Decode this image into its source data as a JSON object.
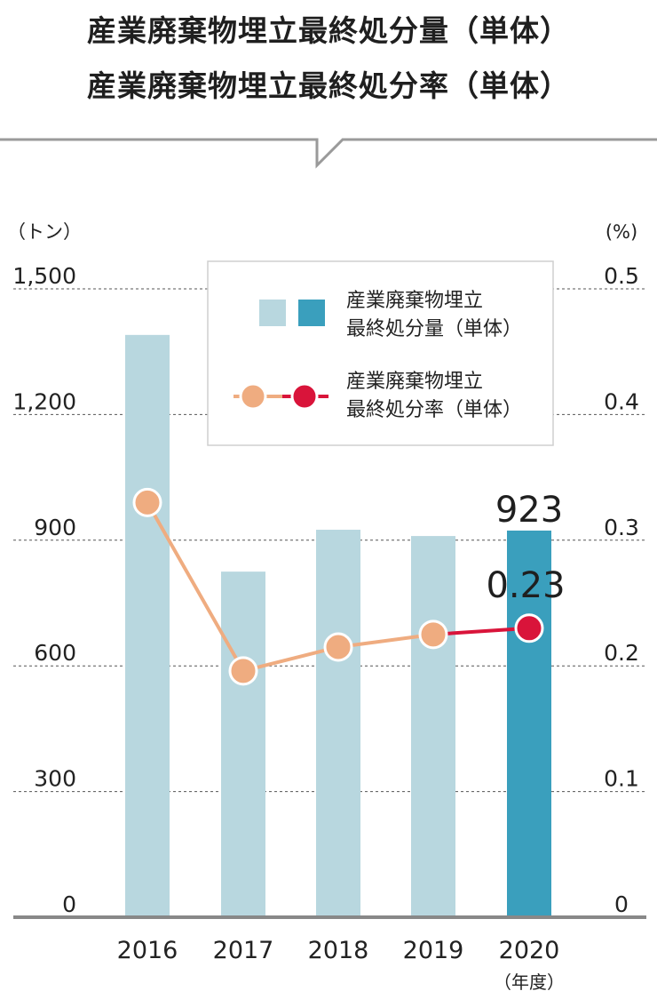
{
  "titles": [
    "産業廃棄物埋立最終処分量（単体）",
    "産業廃棄物埋立最終処分率（単体）"
  ],
  "chart_data": {
    "type": "bar+line",
    "categories": [
      "2016",
      "2017",
      "2018",
      "2019",
      "2020"
    ],
    "x_unit_label": "（年度）",
    "left_axis": {
      "unit_label": "（トン）",
      "min": 0,
      "max": 1500,
      "ticks": [
        0,
        300,
        600,
        900,
        1200,
        1500
      ],
      "tick_labels": [
        "0",
        "300",
        "600",
        "900",
        "1,200",
        "1,500"
      ]
    },
    "right_axis": {
      "unit_label": "(%)",
      "min": 0,
      "max": 0.5,
      "ticks": [
        0,
        0.1,
        0.2,
        0.3,
        0.4,
        0.5
      ],
      "tick_labels": [
        "0",
        "0.1",
        "0.2",
        "0.3",
        "0.4",
        "0.5"
      ]
    },
    "grid": true,
    "series": [
      {
        "name": "産業廃棄物埋立最終処分量（単体）",
        "legend_lines": [
          "産業廃棄物埋立",
          "最終処分量（単体）"
        ],
        "type": "bar",
        "axis": "left",
        "values": [
          1390,
          825,
          925,
          910,
          923
        ],
        "highlight_index": 4,
        "highlight_label": "923"
      },
      {
        "name": "産業廃棄物埋立最終処分率（単体）",
        "legend_lines": [
          "産業廃棄物埋立",
          "最終処分率（単体）"
        ],
        "type": "line",
        "axis": "right",
        "values": [
          0.33,
          0.196,
          0.215,
          0.225,
          0.23
        ],
        "highlight_index": 4,
        "highlight_label": "0.23"
      }
    ],
    "legend_position": "top-right",
    "colors": {
      "bar": "#b8d7df",
      "bar_highlight": "#3a9fbd",
      "line": "#efac80",
      "line_highlight": "#d9143a",
      "grid": "#555555",
      "axis": "#888888"
    }
  }
}
